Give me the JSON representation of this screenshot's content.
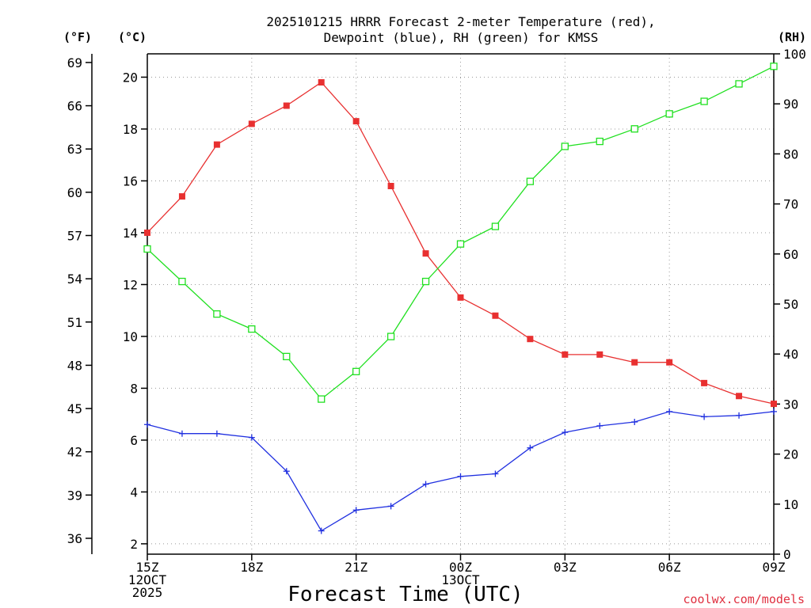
{
  "chart_data": {
    "type": "line",
    "title_line1": "2025101215 HRRR Forecast 2-meter Temperature (red),",
    "title_line2": "Dewpoint (blue), RH (green) for KMSS",
    "xlabel": "Forecast Time (UTC)",
    "credit": "coolwx.com/models",
    "unit_f": "(°F)",
    "unit_c": "(°C)",
    "unit_rh": "(RH)",
    "x_hours": [
      0,
      1,
      2,
      3,
      4,
      5,
      6,
      7,
      8,
      9,
      10,
      11,
      12,
      13,
      14,
      15,
      16,
      17,
      18
    ],
    "x_ticks": [
      {
        "hour": 0,
        "lines": [
          "15Z",
          "12OCT",
          "2025"
        ]
      },
      {
        "hour": 3,
        "lines": [
          "18Z"
        ]
      },
      {
        "hour": 6,
        "lines": [
          "21Z"
        ]
      },
      {
        "hour": 9,
        "lines": [
          "00Z",
          "13OCT"
        ]
      },
      {
        "hour": 12,
        "lines": [
          "03Z"
        ]
      },
      {
        "hour": 15,
        "lines": [
          "06Z"
        ]
      },
      {
        "hour": 18,
        "lines": [
          "09Z"
        ]
      }
    ],
    "ylim_c": [
      1.6,
      20.9
    ],
    "yticks_c": [
      2,
      4,
      6,
      8,
      10,
      12,
      14,
      16,
      18,
      20
    ],
    "ylim_f": [
      34.9,
      69.6
    ],
    "yticks_f": [
      36,
      39,
      42,
      45,
      48,
      51,
      54,
      57,
      60,
      63,
      66,
      69
    ],
    "ylim_rh": [
      0,
      100
    ],
    "yticks_rh": [
      0,
      10,
      20,
      30,
      40,
      50,
      60,
      70,
      80,
      90,
      100
    ],
    "series": [
      {
        "name": "Temperature",
        "axis": "c",
        "color": "#e83030",
        "marker": "square-filled",
        "values": [
          14.0,
          15.4,
          17.4,
          18.2,
          18.9,
          19.8,
          18.3,
          15.8,
          13.2,
          11.5,
          10.8,
          9.9,
          9.3,
          9.3,
          9.0,
          9.0,
          8.2,
          7.7,
          7.4
        ]
      },
      {
        "name": "Dewpoint",
        "axis": "c",
        "color": "#2030e0",
        "marker": "plus",
        "values": [
          6.6,
          6.25,
          6.25,
          6.1,
          4.8,
          2.5,
          3.3,
          3.45,
          4.3,
          4.6,
          4.7,
          5.7,
          6.3,
          6.55,
          6.7,
          7.1,
          6.9,
          6.95,
          7.1
        ]
      },
      {
        "name": "RH",
        "axis": "rh",
        "color": "#20e020",
        "marker": "square-open",
        "values": [
          61,
          54.5,
          48,
          45,
          39.5,
          31,
          36.5,
          43.5,
          54.5,
          62,
          65.5,
          74.5,
          81.5,
          82.5,
          85,
          88,
          90.5,
          94,
          97.5
        ]
      }
    ]
  }
}
